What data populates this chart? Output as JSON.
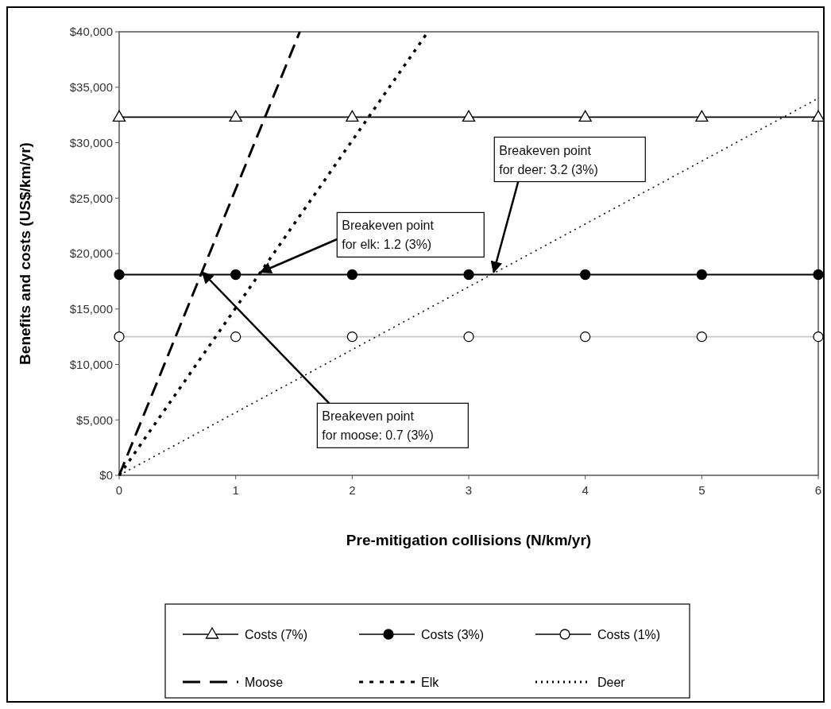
{
  "chart_data": {
    "type": "line",
    "xlabel": "Pre-mitigation collisions (N/km/yr)",
    "ylabel": "Benefits and costs (US$/km/yr)",
    "xlim": [
      0,
      6
    ],
    "xticks": [
      0,
      1,
      2,
      3,
      4,
      5,
      6
    ],
    "ylim": [
      0,
      40000
    ],
    "yticks": [
      {
        "value": 0,
        "label": "$0"
      },
      {
        "value": 5000,
        "label": "$5,000"
      },
      {
        "value": 10000,
        "label": "$10,000"
      },
      {
        "value": 15000,
        "label": "$15,000"
      },
      {
        "value": 20000,
        "label": "$20,000"
      },
      {
        "value": 25000,
        "label": "$25,000"
      },
      {
        "value": 30000,
        "label": "$30,000"
      },
      {
        "value": 35000,
        "label": "$35,000"
      },
      {
        "value": 40000,
        "label": "$40,000"
      }
    ],
    "grid": false,
    "legend": "bottom",
    "series": [
      {
        "name": "Costs (7%)",
        "color": "#000000",
        "x": [
          0,
          1,
          2,
          3,
          4,
          5,
          6
        ],
        "values": [
          32300,
          32300,
          32300,
          32300,
          32300,
          32300,
          32300
        ],
        "marker": "triangle",
        "line_style": "solid"
      },
      {
        "name": "Costs (3%)",
        "color": "#000000",
        "x": [
          0,
          1,
          2,
          3,
          4,
          5,
          6
        ],
        "values": [
          18100,
          18100,
          18100,
          18100,
          18100,
          18100,
          18100
        ],
        "marker": "circle",
        "line_style": "solid"
      },
      {
        "name": "Costs (1%)",
        "color": "#c8c8c8",
        "x": [
          0,
          1,
          2,
          3,
          4,
          5,
          6
        ],
        "values": [
          12500,
          12500,
          12500,
          12500,
          12500,
          12500,
          12500
        ],
        "marker": "circle",
        "line_style": "solid"
      },
      {
        "name": "Moose",
        "color": "#000000",
        "x": [
          0,
          1.55
        ],
        "values": [
          0,
          40000
        ],
        "marker": "none",
        "line_style": "dashed"
      },
      {
        "name": "Elk",
        "color": "#000000",
        "x": [
          0,
          2.65
        ],
        "values": [
          0,
          40000
        ],
        "marker": "none",
        "line_style": "dotted"
      },
      {
        "name": "Deer",
        "color": "#000000",
        "x": [
          0,
          6
        ],
        "values": [
          0,
          34000
        ],
        "marker": "none",
        "line_style": "dotted"
      }
    ],
    "annotations": [
      {
        "text": "Breakeven point\nfor elk: 1.2 (3%)",
        "x": 1.2,
        "y": 18100
      },
      {
        "text": "Breakeven point\nfor deer: 3.2 (3%)",
        "x": 3.2,
        "y": 18100
      },
      {
        "text": "Breakeven point\nfor moose: 0.7 (3%)",
        "x": 0.7,
        "y": 18100
      }
    ]
  }
}
